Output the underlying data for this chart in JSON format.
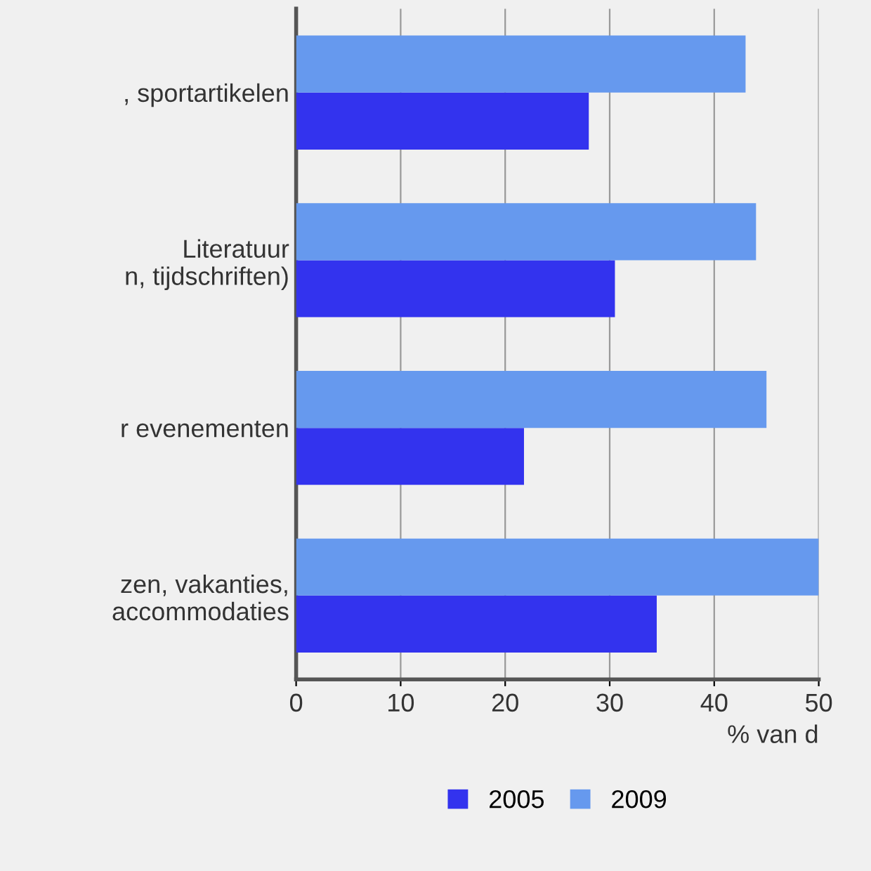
{
  "chart_data": {
    "type": "bar",
    "orientation": "horizontal",
    "xlabel": "% van d",
    "categories": [
      ", sportartikelen",
      "Literatuur\nn, tijdschriften)",
      "r evenementen",
      "zen, vakanties,\naccommodaties"
    ],
    "series": [
      {
        "name": "2005",
        "color": "#3333ee",
        "values": [
          28,
          30.5,
          21.8,
          34.5
        ]
      },
      {
        "name": "2009",
        "color": "#6699ee",
        "values": [
          43,
          44,
          45,
          50
        ]
      }
    ],
    "xlim": [
      0,
      50
    ],
    "xticks": [
      0,
      10,
      20,
      30,
      40,
      50
    ],
    "grid": "x",
    "legend": "bottom"
  }
}
